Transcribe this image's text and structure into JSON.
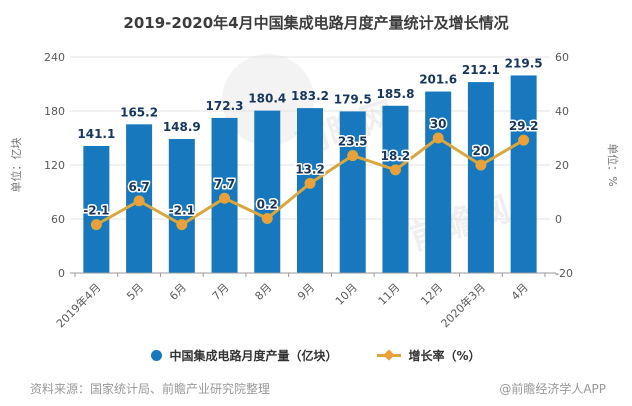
{
  "title": "2019-2020年4月中国集成电路月度产量统计及增长情况",
  "chart_data": {
    "type": "bar+line",
    "categories": [
      "2019年4月",
      "5月",
      "6月",
      "7月",
      "8月",
      "9月",
      "10月",
      "11月",
      "12月",
      "2020年3月",
      "4月"
    ],
    "series": [
      {
        "name": "中国集成电路月度产量（亿块）",
        "type": "bar",
        "axis": "left",
        "values": [
          141.1,
          165.2,
          148.9,
          172.3,
          180.4,
          183.2,
          179.5,
          185.8,
          201.6,
          212.1,
          219.5
        ]
      },
      {
        "name": "增长率（%）",
        "type": "line",
        "axis": "right",
        "values": [
          -2.1,
          6.7,
          -2.1,
          7.7,
          0.2,
          13.2,
          23.5,
          18.2,
          30,
          20,
          29.2
        ]
      }
    ],
    "left_axis": {
      "name": "单位：亿块",
      "min": 0,
      "max": 240,
      "ticks": [
        0,
        60,
        120,
        180,
        240
      ]
    },
    "right_axis": {
      "name": "单位：%",
      "min": -20,
      "max": 60,
      "ticks": [
        -20,
        0,
        20,
        40,
        60
      ]
    },
    "grid": true,
    "legend_position": "bottom",
    "data_labels": true
  },
  "legend": {
    "bar_label": "中国集成电路月度产量（亿块）",
    "line_label": "增长率（%）"
  },
  "footer": {
    "source": "资料来源：国家统计局、前瞻产业研究院整理",
    "brand": "@前瞻经济学人APP"
  },
  "watermark": {
    "text": "前瞻网"
  },
  "colors": {
    "bar": "#1778be",
    "line": "#d9a73d",
    "marker": "#ec9f3a",
    "label_navy": "#17365d",
    "grid": "#e3e3e3",
    "axis_line": "#999999",
    "tick_text": "#595959",
    "title_text": "#3c3c3c",
    "footer_text": "#999999",
    "watermark": "#dcdcdc"
  }
}
